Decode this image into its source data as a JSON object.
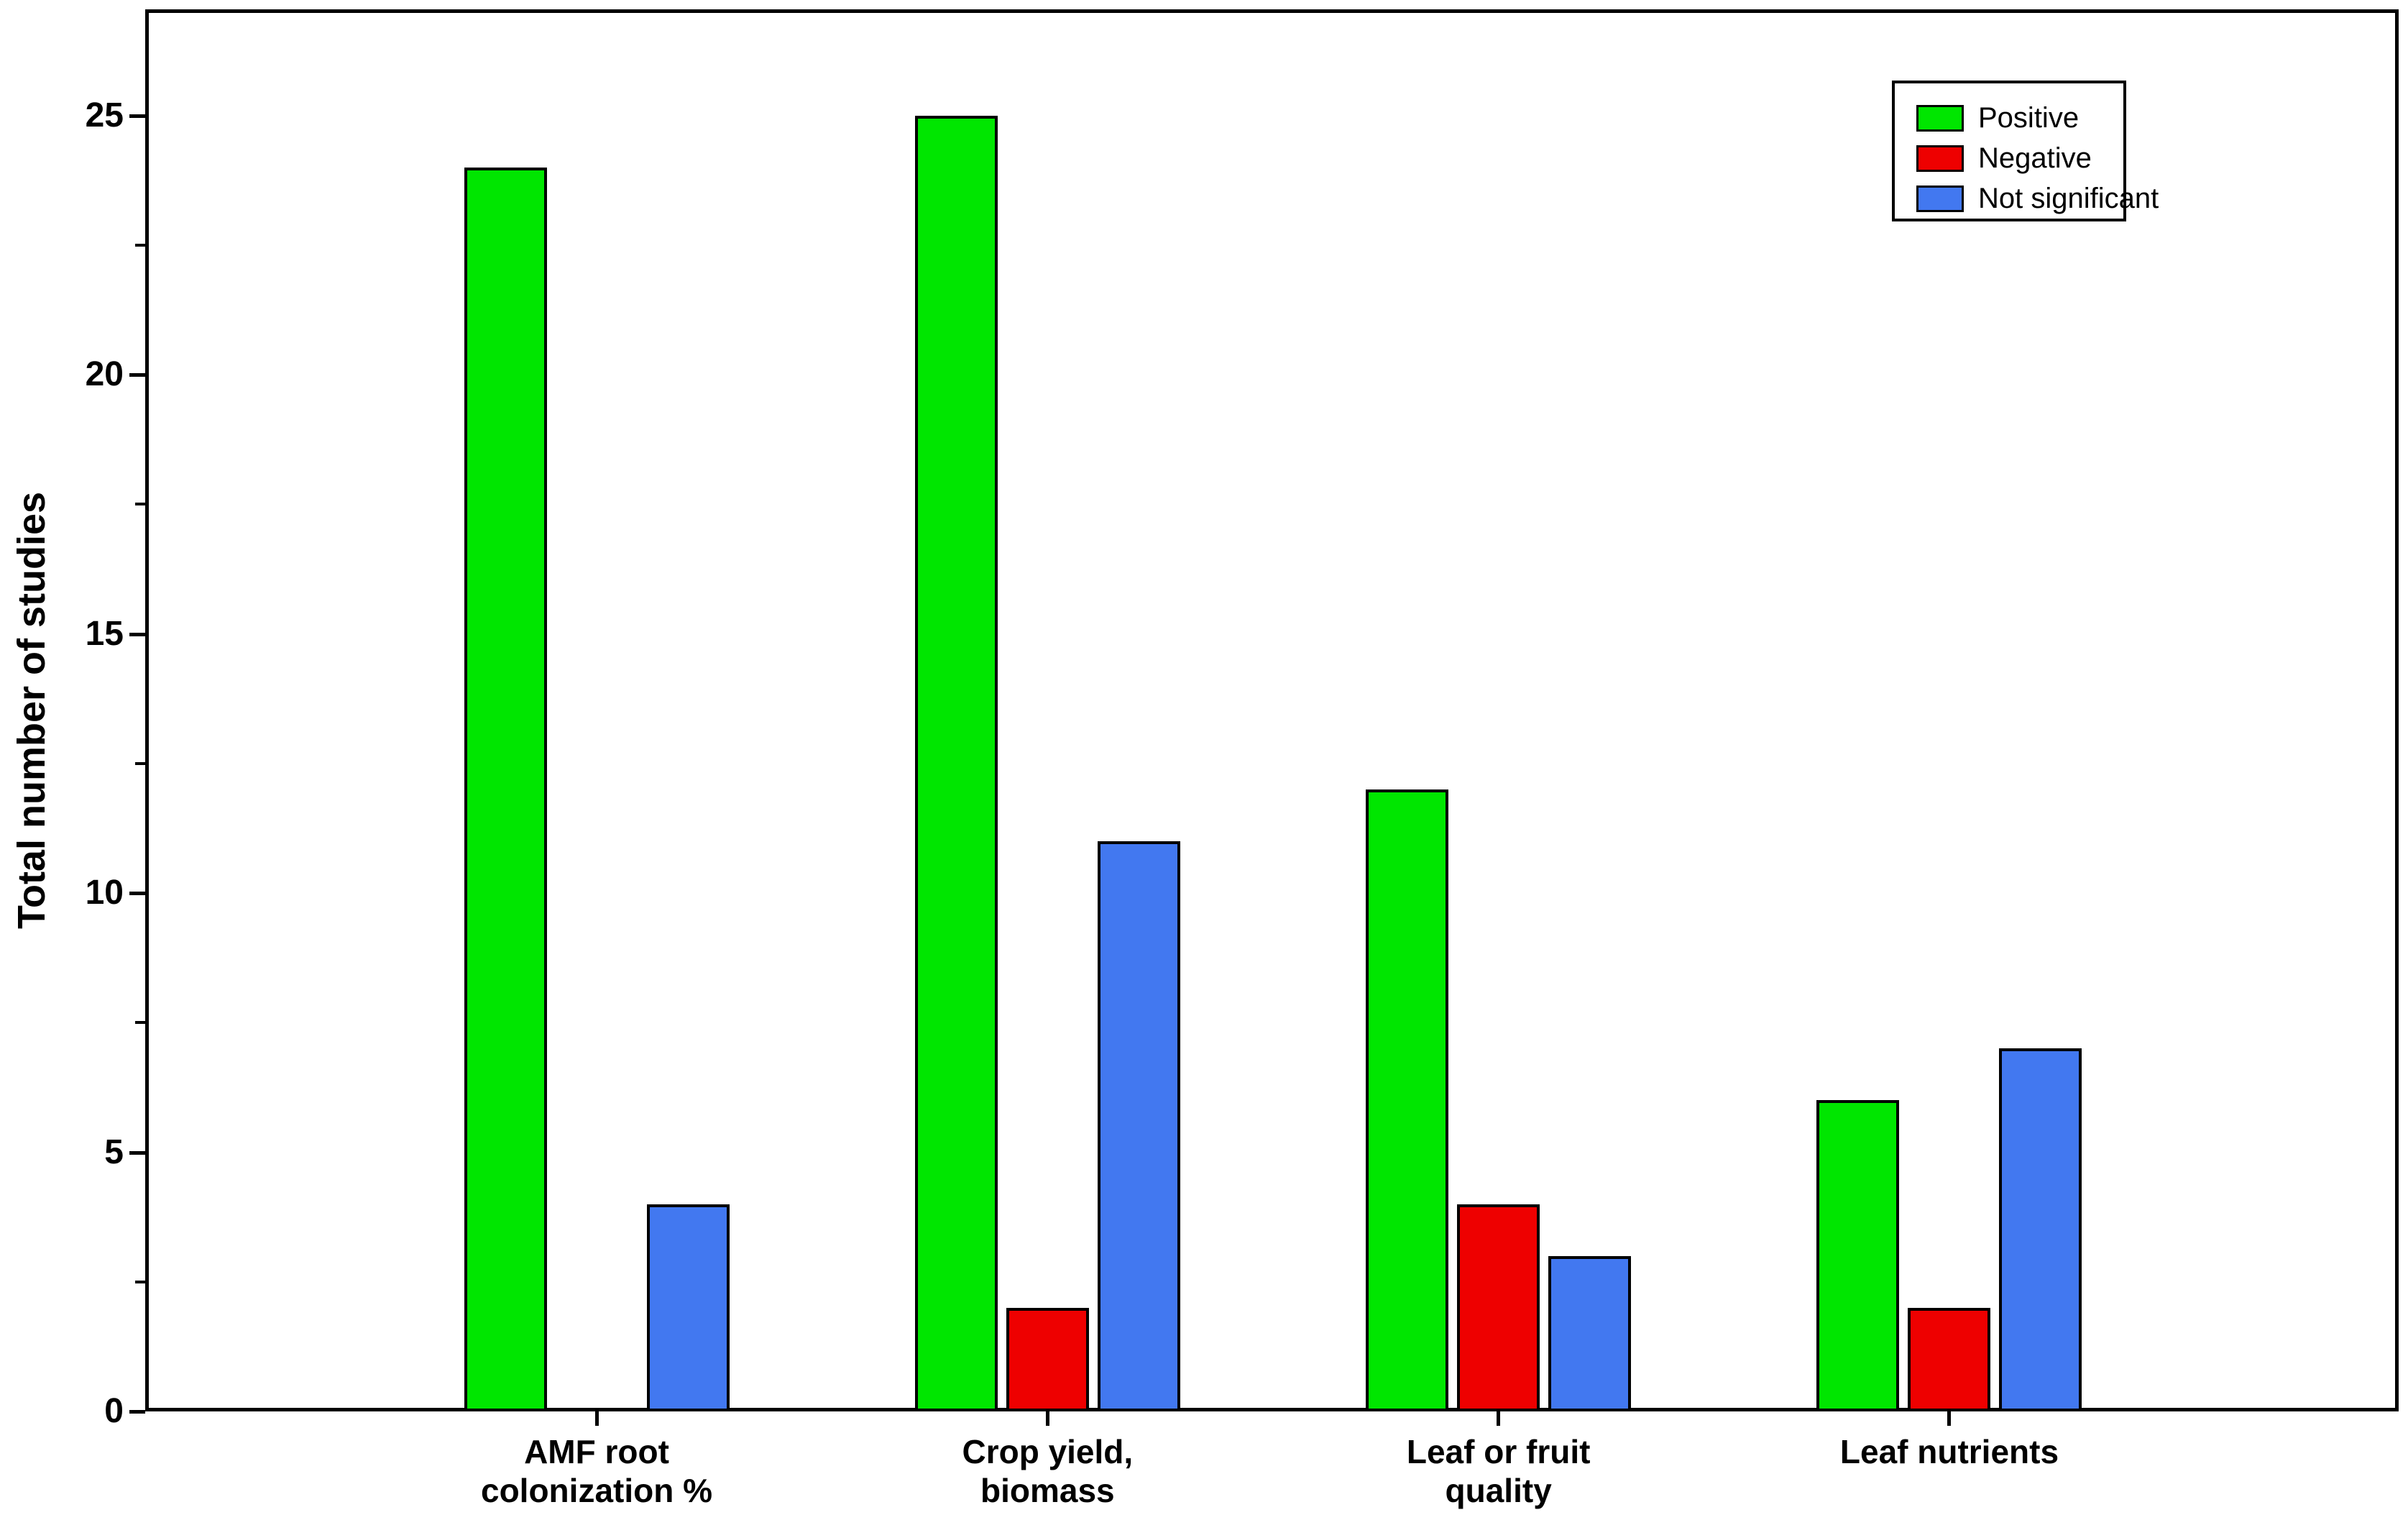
{
  "chart_data": {
    "type": "bar",
    "title": "",
    "xlabel": "",
    "ylabel": "Total number of studies",
    "categories": [
      "AMF root\ncolonization %",
      "Crop yield,\nbiomass",
      "Leaf or fruit\nquality",
      "Leaf nutrients"
    ],
    "series": [
      {
        "name": "Positive",
        "color": "#00e600",
        "values": [
          24,
          25,
          12,
          6
        ]
      },
      {
        "name": "Negative",
        "color": "#ee0000",
        "values": [
          0,
          2,
          4,
          2
        ]
      },
      {
        "name": "Not significant",
        "color": "#4278f0",
        "values": [
          4,
          11,
          3,
          7
        ]
      }
    ],
    "ylim": [
      0,
      27
    ],
    "y_major_ticks": [
      0,
      5,
      10,
      15,
      20,
      25
    ],
    "y_minor_ticks": [
      2.5,
      7.5,
      12.5,
      17.5,
      22.5
    ],
    "grid": false,
    "legend_position": "top-right",
    "bar_edge_color": "#000000",
    "axis_color": "#000000"
  }
}
